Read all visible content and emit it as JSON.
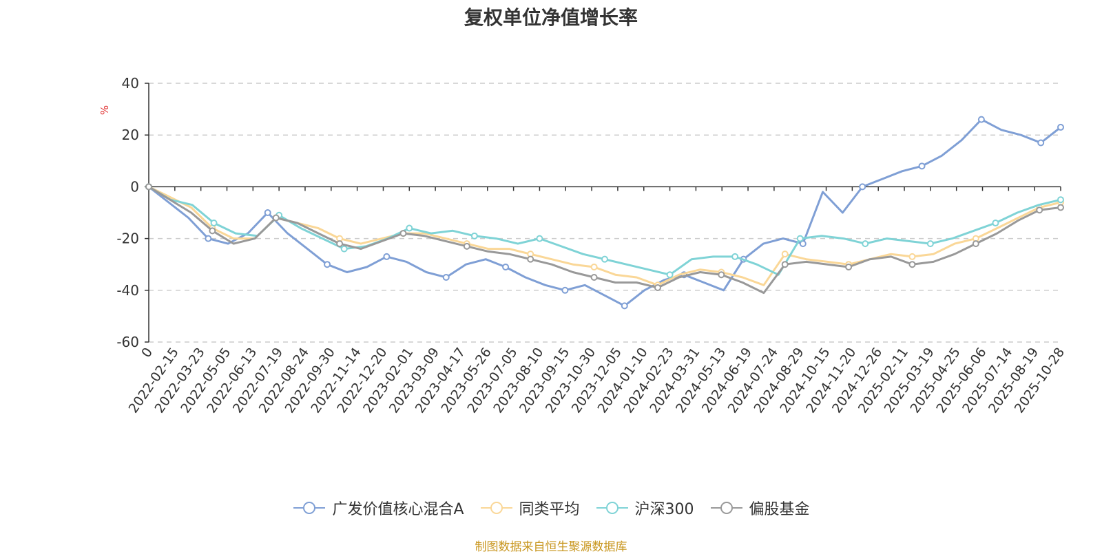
{
  "chart_data": {
    "type": "line",
    "title": "复权单位净值增长率",
    "ylabel": "%",
    "ylim": [
      -60,
      40
    ],
    "yticks": [
      -60,
      -40,
      -20,
      0,
      20,
      40
    ],
    "grid": true,
    "legend_position": "bottom",
    "x_tick_labels": [
      "0",
      "2022-02-15",
      "2022-03-23",
      "2022-05-05",
      "2022-06-13",
      "2022-07-19",
      "2022-08-24",
      "2022-09-30",
      "2022-11-14",
      "2022-12-20",
      "2023-02-01",
      "2023-03-09",
      "2023-04-17",
      "2023-05-26",
      "2023-07-05",
      "2023-08-10",
      "2023-09-15",
      "2023-10-30",
      "2023-12-05",
      "2024-01-10",
      "2024-02-23",
      "2024-03-31",
      "2024-05-13",
      "2024-06-19",
      "2024-07-24",
      "2024-08-29",
      "2024-10-15",
      "2024-11-20",
      "2024-12-26",
      "2025-02-11",
      "2025-03-19",
      "2025-04-25",
      "2025-06-06",
      "2025-07-14",
      "2025-08-19",
      "2025-10-28"
    ],
    "series": [
      {
        "name": "广发价值核心混合A",
        "color": "#7f9fd5",
        "values": [
          0,
          -6,
          -12,
          -20,
          -22,
          -18,
          -10,
          -18,
          -24,
          -30,
          -33,
          -31,
          -27,
          -29,
          -33,
          -35,
          -30,
          -28,
          -31,
          -35,
          -38,
          -40,
          -38,
          -42,
          -46,
          -40,
          -36,
          -34,
          -37,
          -40,
          -28,
          -22,
          -20,
          -22,
          -2,
          -10,
          0,
          3,
          6,
          8,
          12,
          18,
          26,
          22,
          20,
          17,
          23
        ]
      },
      {
        "name": "同类平均",
        "color": "#fad797",
        "values": [
          0,
          -4,
          -8,
          -16,
          -20,
          -20,
          -12,
          -14,
          -16,
          -20,
          -22,
          -20,
          -18,
          -18,
          -20,
          -22,
          -24,
          -24,
          -26,
          -28,
          -30,
          -31,
          -34,
          -35,
          -38,
          -34,
          -32,
          -33,
          -35,
          -38,
          -26,
          -28,
          -29,
          -30,
          -28,
          -26,
          -27,
          -26,
          -22,
          -20,
          -16,
          -12,
          -8,
          -6
        ]
      },
      {
        "name": "沪深300",
        "color": "#7fd3d6",
        "values": [
          0,
          -5,
          -7,
          -14,
          -18,
          -19,
          -11,
          -16,
          -20,
          -24,
          -23,
          -20,
          -16,
          -18,
          -17,
          -19,
          -20,
          -22,
          -20,
          -23,
          -26,
          -28,
          -30,
          -32,
          -34,
          -28,
          -27,
          -27,
          -30,
          -34,
          -20,
          -19,
          -20,
          -22,
          -20,
          -21,
          -22,
          -20,
          -17,
          -14,
          -10,
          -7,
          -5
        ]
      },
      {
        "name": "偏股基金",
        "color": "#999999",
        "values": [
          0,
          -5,
          -10,
          -17,
          -22,
          -20,
          -12,
          -14,
          -18,
          -22,
          -24,
          -21,
          -18,
          -19,
          -21,
          -23,
          -25,
          -26,
          -28,
          -30,
          -33,
          -35,
          -37,
          -37,
          -39,
          -35,
          -33,
          -34,
          -37,
          -41,
          -30,
          -29,
          -30,
          -31,
          -28,
          -27,
          -30,
          -29,
          -26,
          -22,
          -18,
          -13,
          -9,
          -8
        ]
      }
    ]
  },
  "legend": {
    "items": [
      "广发价值核心混合A",
      "同类平均",
      "沪深300",
      "偏股基金"
    ]
  },
  "source_note": "制图数据来自恒生聚源数据库"
}
